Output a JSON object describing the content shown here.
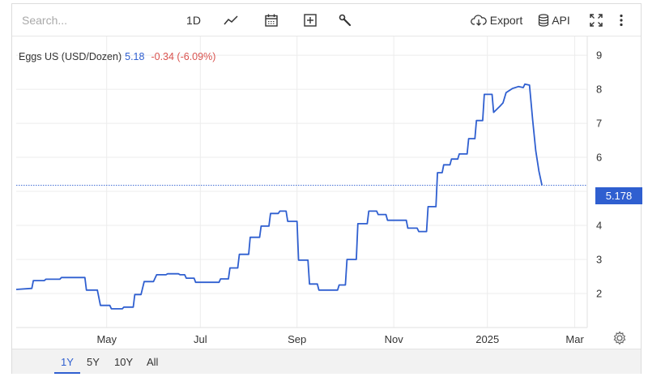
{
  "toolbar": {
    "search_placeholder": "Search...",
    "interval_label": "1D",
    "export_label": "Export",
    "api_label": "API",
    "icons": [
      "line-chart-icon",
      "calendar-icon",
      "plus-square-icon",
      "wrench-icon",
      "cloud-download-icon",
      "database-icon",
      "fullscreen-icon",
      "more-vertical-icon"
    ]
  },
  "legend": {
    "name": "Eggs US (USD/Dozen)",
    "last": "5.18",
    "change": "-0.34 (-6.09%)"
  },
  "price_tag": "5.178",
  "range_buttons": [
    "1Y",
    "5Y",
    "10Y",
    "All"
  ],
  "active_range": "1Y",
  "colors": {
    "line": "#2f5fd0",
    "negative": "#d9534f",
    "grid": "#ececec"
  },
  "chart_data": {
    "type": "line",
    "title": "",
    "xlabel": "",
    "ylabel": "",
    "x_ticks": [
      {
        "label": "May",
        "t": 2.9
      },
      {
        "label": "Jul",
        "t": 5.9
      },
      {
        "label": "Sep",
        "t": 9.0
      },
      {
        "label": "Nov",
        "t": 12.1
      },
      {
        "label": "2025",
        "t": 15.1
      },
      {
        "label": "Mar",
        "t": 17.9
      }
    ],
    "y_ticks": [
      2,
      3,
      4,
      5,
      6,
      7,
      8,
      9
    ],
    "ylim": [
      1.0,
      9.55
    ],
    "xlim": [
      0,
      18.3
    ],
    "last_value": 5.178,
    "grid": true,
    "series": [
      {
        "values": [
          [
            0.0,
            2.12
          ],
          [
            0.5,
            2.15
          ],
          [
            0.55,
            2.38
          ],
          [
            0.9,
            2.38
          ],
          [
            0.95,
            2.42
          ],
          [
            1.4,
            2.42
          ],
          [
            1.45,
            2.47
          ],
          [
            2.2,
            2.47
          ],
          [
            2.25,
            2.1
          ],
          [
            2.6,
            2.1
          ],
          [
            2.7,
            1.65
          ],
          [
            3.0,
            1.65
          ],
          [
            3.05,
            1.55
          ],
          [
            3.4,
            1.55
          ],
          [
            3.45,
            1.6
          ],
          [
            3.75,
            1.6
          ],
          [
            3.8,
            1.97
          ],
          [
            4.0,
            1.97
          ],
          [
            4.1,
            2.35
          ],
          [
            4.4,
            2.35
          ],
          [
            4.5,
            2.55
          ],
          [
            4.8,
            2.55
          ],
          [
            4.85,
            2.58
          ],
          [
            5.2,
            2.58
          ],
          [
            5.25,
            2.55
          ],
          [
            5.4,
            2.55
          ],
          [
            5.45,
            2.45
          ],
          [
            5.7,
            2.45
          ],
          [
            5.75,
            2.33
          ],
          [
            6.5,
            2.33
          ],
          [
            6.55,
            2.43
          ],
          [
            6.8,
            2.43
          ],
          [
            6.85,
            2.75
          ],
          [
            7.1,
            2.75
          ],
          [
            7.15,
            3.15
          ],
          [
            7.45,
            3.15
          ],
          [
            7.5,
            3.65
          ],
          [
            7.8,
            3.65
          ],
          [
            7.85,
            3.98
          ],
          [
            8.1,
            3.98
          ],
          [
            8.15,
            4.35
          ],
          [
            8.4,
            4.35
          ],
          [
            8.45,
            4.42
          ],
          [
            8.65,
            4.42
          ],
          [
            8.7,
            4.12
          ],
          [
            9.0,
            4.12
          ],
          [
            9.05,
            2.98
          ],
          [
            9.35,
            2.98
          ],
          [
            9.4,
            2.28
          ],
          [
            9.65,
            2.28
          ],
          [
            9.7,
            2.1
          ],
          [
            10.3,
            2.1
          ],
          [
            10.35,
            2.25
          ],
          [
            10.55,
            2.25
          ],
          [
            10.6,
            3.0
          ],
          [
            10.9,
            3.0
          ],
          [
            10.95,
            4.05
          ],
          [
            11.25,
            4.05
          ],
          [
            11.3,
            4.42
          ],
          [
            11.55,
            4.42
          ],
          [
            11.6,
            4.32
          ],
          [
            11.85,
            4.32
          ],
          [
            11.9,
            4.15
          ],
          [
            12.5,
            4.15
          ],
          [
            12.55,
            3.92
          ],
          [
            12.85,
            3.92
          ],
          [
            12.9,
            3.82
          ],
          [
            13.15,
            3.82
          ],
          [
            13.2,
            4.55
          ],
          [
            13.45,
            4.55
          ],
          [
            13.5,
            5.55
          ],
          [
            13.65,
            5.55
          ],
          [
            13.7,
            5.78
          ],
          [
            13.9,
            5.78
          ],
          [
            13.95,
            5.95
          ],
          [
            14.15,
            5.95
          ],
          [
            14.2,
            6.1
          ],
          [
            14.45,
            6.1
          ],
          [
            14.5,
            6.55
          ],
          [
            14.7,
            6.55
          ],
          [
            14.75,
            7.08
          ],
          [
            14.95,
            7.08
          ],
          [
            15.0,
            7.85
          ],
          [
            15.25,
            7.85
          ],
          [
            15.3,
            7.32
          ],
          [
            15.5,
            7.5
          ],
          [
            15.6,
            7.6
          ],
          [
            15.7,
            7.9
          ],
          [
            15.9,
            8.02
          ],
          [
            16.1,
            8.08
          ],
          [
            16.25,
            8.05
          ],
          [
            16.3,
            8.15
          ],
          [
            16.45,
            8.12
          ],
          [
            16.55,
            7.1
          ],
          [
            16.65,
            6.2
          ],
          [
            16.75,
            5.6
          ],
          [
            16.85,
            5.178
          ]
        ]
      }
    ]
  }
}
